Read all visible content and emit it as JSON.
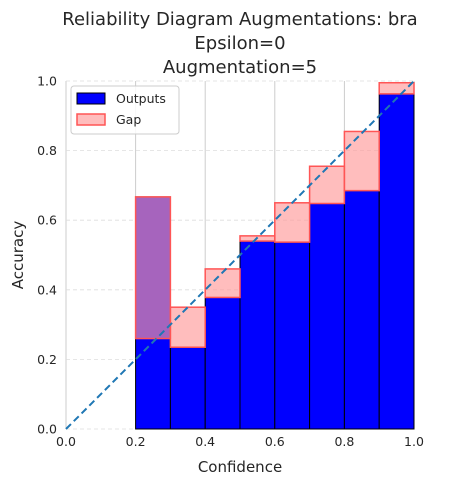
{
  "chart_data": {
    "type": "bar",
    "title_lines": [
      "Reliability Diagram Augmentations: bra",
      "Epsilon=0",
      "Augmentation=5"
    ],
    "xlabel": "Confidence",
    "ylabel": "Accuracy",
    "xlim": [
      0.0,
      1.0
    ],
    "ylim": [
      0.0,
      1.0
    ],
    "xticks": [
      "0.0",
      "0.2",
      "0.4",
      "0.6",
      "0.8",
      "1.0"
    ],
    "yticks": [
      "0.0",
      "0.2",
      "0.4",
      "0.6",
      "0.8",
      "1.0"
    ],
    "grid": true,
    "legend_position": "top-left",
    "bin_edges": [
      0.0,
      0.1,
      0.2,
      0.3,
      0.4,
      0.5,
      0.6,
      0.7,
      0.8,
      0.9,
      1.0
    ],
    "series": [
      {
        "name": "Outputs",
        "color": "#0000ff",
        "values": [
          0.0,
          0.0,
          0.667,
          0.235,
          0.378,
          0.54,
          0.537,
          0.648,
          0.685,
          0.963
        ]
      },
      {
        "name": "Gap",
        "color": "#ff9999",
        "expected": [
          0.0,
          0.0,
          0.26,
          0.35,
          0.46,
          0.555,
          0.65,
          0.755,
          0.855,
          0.995
        ]
      }
    ],
    "diagonal": {
      "from": [
        0,
        0
      ],
      "to": [
        1,
        1
      ],
      "color": "#1f77b4",
      "style": "dashed"
    }
  }
}
